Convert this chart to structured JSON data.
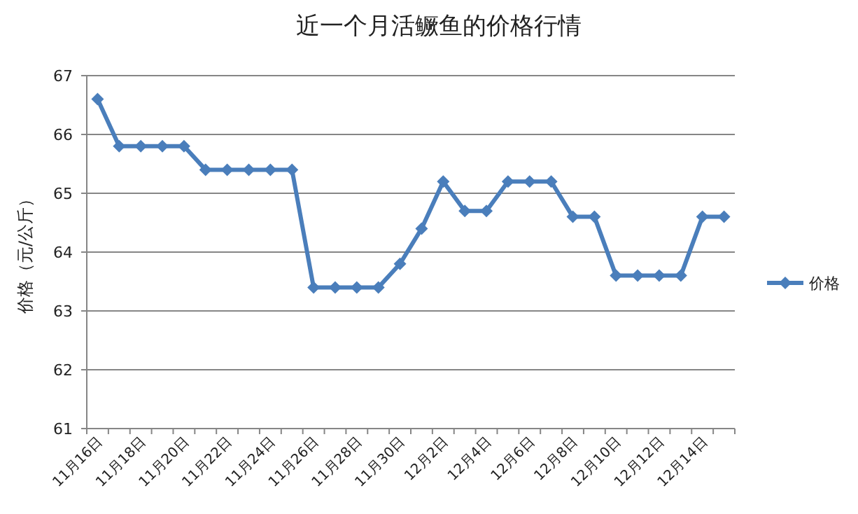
{
  "chart_data": {
    "type": "line",
    "title": "近一个月活鳜鱼的价格行情",
    "ylabel": "价格（元/公斤）",
    "categories": [
      "11月16日",
      null,
      "11月18日",
      null,
      "11月20日",
      null,
      "11月22日",
      null,
      "11月24日",
      null,
      "11月26日",
      null,
      "11月28日",
      null,
      "11月30日",
      null,
      "12月2日",
      null,
      "12月4日",
      null,
      "12月6日",
      null,
      "12月8日",
      null,
      "12月10日",
      null,
      "12月12日",
      null,
      "12月14日",
      null
    ],
    "series": [
      {
        "name": "价格",
        "color": "#4a7ebb",
        "values": [
          66.6,
          65.8,
          65.8,
          65.8,
          65.8,
          65.4,
          65.4,
          65.4,
          65.4,
          65.4,
          63.4,
          63.4,
          63.4,
          63.4,
          63.8,
          64.4,
          65.2,
          64.7,
          64.7,
          65.2,
          65.2,
          65.2,
          64.6,
          64.6,
          63.6,
          63.6,
          63.6,
          63.6,
          64.6,
          64.6
        ]
      }
    ],
    "ylim": [
      61,
      67
    ],
    "yticks": [
      61,
      62,
      63,
      64,
      65,
      66,
      67
    ],
    "grid": "y",
    "legend": "right",
    "marker": "diamond",
    "line_style": "solid"
  }
}
